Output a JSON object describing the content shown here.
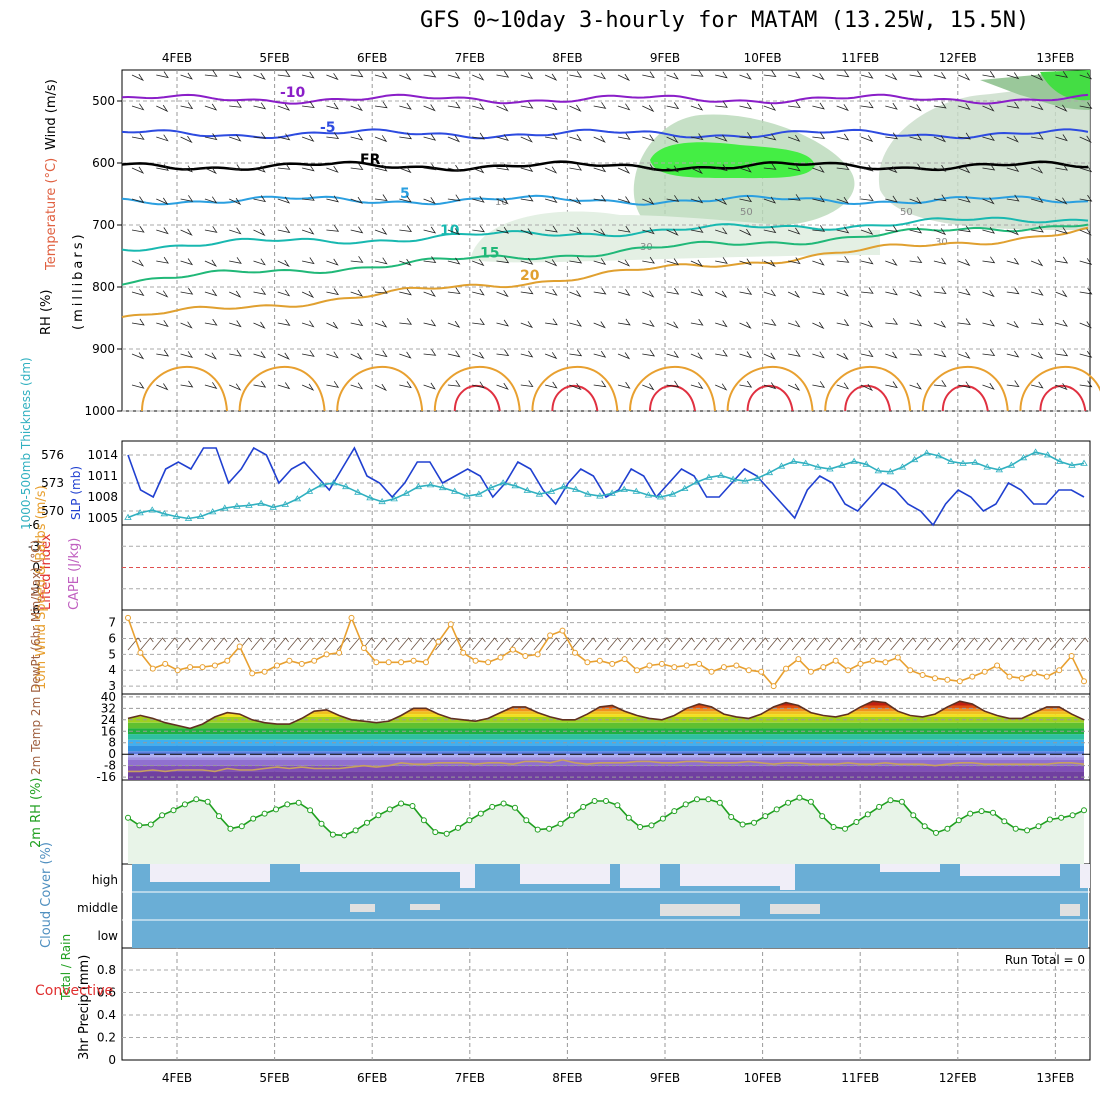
{
  "title": "GFS 0~10day 3-hourly for MATAM (13.25W, 15.5N)",
  "dates": [
    "4FEB",
    "5FEB",
    "6FEB",
    "7FEB",
    "8FEB",
    "9FEB",
    "10FEB",
    "11FEB",
    "12FEB",
    "13FEB"
  ],
  "run_total": "Run Total = 0",
  "colors": {
    "rh": "#22c822",
    "temp_red": "#e03030",
    "wind_blue": "#2040d0",
    "thick": "#30b0c0",
    "speed": "#e8a030",
    "rh2m": "#20a020",
    "cloud": "#6aaed6"
  },
  "chart_data": [
    {
      "type": "contour",
      "panel": "upper-air",
      "ylabel": "(millibars)",
      "side_labels": [
        "Wind (m/s)",
        "Temperature (°C)",
        "RH (%)"
      ],
      "yticks": [
        "500",
        "600",
        "700",
        "800",
        "900",
        "1000"
      ],
      "ylim": [
        1000,
        450
      ],
      "isotherms": [
        {
          "label": "-10",
          "color": "#8a1ec8",
          "level_mb": 497
        },
        {
          "label": "-5",
          "color": "#2d4be0",
          "level_mb": 553
        },
        {
          "label": "FR",
          "color": "#000000",
          "level_mb": 605
        },
        {
          "label": "5",
          "color": "#2a9fe0",
          "level_mb": 660
        },
        {
          "label": "10",
          "color": "#18b8b0",
          "level_mb": 735
        },
        {
          "label": "15",
          "color": "#20b878",
          "level_mb": 790
        },
        {
          "label": "20",
          "color": "#e0a030",
          "level_mb": 850
        }
      ],
      "rh_labels": [
        "10",
        "30",
        "50"
      ]
    },
    {
      "type": "line",
      "panel": "thickness-slp",
      "ylabel_left": "1000-500mb Thickness (dm)",
      "ylabel_right": "SLP (mb)",
      "yticks_left": [
        "576",
        "573",
        "570"
      ],
      "yticks_right": [
        "1014",
        "1011",
        "1008",
        "1005"
      ],
      "series": [
        {
          "name": "SLP (mb)",
          "values": [
            1014,
            1009,
            1008,
            1012,
            1013,
            1012,
            1015,
            1015,
            1010,
            1012,
            1015,
            1014,
            1010,
            1012,
            1013,
            1011,
            1009,
            1012,
            1015,
            1011,
            1010,
            1008,
            1010,
            1013,
            1013,
            1010,
            1011,
            1012,
            1011,
            1008,
            1010,
            1013,
            1012,
            1009,
            1007,
            1010,
            1012,
            1011,
            1008,
            1009,
            1012,
            1011,
            1008,
            1010,
            1012,
            1011,
            1008,
            1008,
            1010,
            1012,
            1011,
            1009,
            1007,
            1005,
            1009,
            1011,
            1010,
            1007,
            1006,
            1008,
            1010,
            1009,
            1007,
            1006,
            1004,
            1007,
            1009,
            1008,
            1006,
            1007,
            1010,
            1009,
            1007,
            1007,
            1009,
            1009,
            1008
          ]
        },
        {
          "name": "1000-500mb Thickness (dm)",
          "values": [
            569.3,
            569.8,
            570.1,
            569.7,
            569.4,
            569.2,
            569.4,
            569.9,
            570.3,
            570.5,
            570.6,
            570.8,
            570.4,
            570.7,
            571.3,
            572.1,
            572.8,
            573.0,
            572.6,
            572.0,
            571.4,
            571.0,
            571.3,
            571.9,
            572.6,
            572.8,
            572.5,
            572.1,
            571.6,
            571.8,
            572.5,
            573.0,
            572.7,
            572.2,
            571.8,
            572.1,
            572.6,
            572.3,
            571.8,
            571.6,
            571.9,
            572.3,
            572.1,
            571.7,
            571.5,
            571.8,
            572.4,
            573.1,
            573.6,
            573.8,
            573.4,
            573.2,
            573.5,
            574.1,
            574.8,
            575.3,
            575.1,
            574.7,
            574.5,
            574.9,
            575.3,
            575.0,
            574.3,
            574.2,
            574.7,
            575.5,
            576.2,
            575.9,
            575.3,
            575.1,
            575.2,
            574.7,
            574.4,
            574.9,
            575.7,
            576.3,
            576.0,
            575.3,
            574.9,
            575.1
          ]
        }
      ]
    },
    {
      "type": "line",
      "panel": "stability",
      "ylabel_left": "Lifted Index",
      "ylabel_right": "CAPE (J/kg)",
      "yticks": [
        "-6",
        "-3",
        "0",
        "3",
        "6"
      ],
      "values_cape": [
        0
      ]
    },
    {
      "type": "line",
      "panel": "10m-wind",
      "ylabel": "10m Wind Speed & Barbs (m/s)",
      "yticks": [
        "7",
        "6",
        "5",
        "4",
        "3"
      ],
      "series": [
        {
          "name": "10m Wind Speed",
          "values": [
            7.3,
            5.1,
            4.1,
            4.4,
            4.0,
            4.2,
            4.2,
            4.3,
            4.6,
            5.5,
            3.8,
            3.9,
            4.3,
            4.6,
            4.4,
            4.6,
            5.0,
            5.1,
            7.3,
            5.4,
            4.5,
            4.5,
            4.5,
            4.6,
            4.5,
            5.8,
            6.9,
            5.1,
            4.6,
            4.5,
            4.8,
            5.3,
            4.9,
            5.0,
            6.2,
            6.5,
            5.1,
            4.5,
            4.6,
            4.4,
            4.7,
            4.0,
            4.3,
            4.4,
            4.2,
            4.3,
            4.4,
            3.9,
            4.2,
            4.3,
            4.0,
            3.9,
            3.0,
            4.1,
            4.7,
            3.9,
            4.2,
            4.6,
            4.0,
            4.4,
            4.6,
            4.5,
            4.8,
            4.0,
            3.7,
            3.5,
            3.4,
            3.3,
            3.6,
            3.9,
            4.3,
            3.6,
            3.5,
            3.8,
            3.6,
            4.0,
            4.9,
            3.3
          ]
        }
      ]
    },
    {
      "type": "area",
      "panel": "2m-temp",
      "ylabel": "2m Temp 2m DewPt (6hr Min/Max) (°C)",
      "yticks": [
        "40",
        "32",
        "24",
        "16",
        "8",
        "0",
        "-8",
        "-16"
      ],
      "series": [
        {
          "name": "2m Temp",
          "values": [
            25,
            27,
            25,
            22,
            20,
            18,
            21,
            26,
            29,
            28,
            24,
            22,
            21,
            21,
            25,
            30,
            31,
            27,
            24,
            23,
            22,
            23,
            27,
            32,
            32,
            28,
            25,
            24,
            23,
            25,
            29,
            33,
            33,
            29,
            26,
            24,
            24,
            28,
            33,
            34,
            30,
            27,
            25,
            24,
            27,
            32,
            35,
            33,
            28,
            26,
            25,
            28,
            33,
            36,
            34,
            29,
            27,
            26,
            28,
            33,
            37,
            36,
            30,
            27,
            26,
            28,
            33,
            37,
            35,
            30,
            27,
            25,
            25,
            29,
            33,
            33,
            28,
            24
          ]
        },
        {
          "name": "2m DewPt",
          "values": [
            -12,
            -12,
            -11,
            -12,
            -11,
            -11,
            -11,
            -12,
            -10,
            -11,
            -11,
            -10,
            -9,
            -10,
            -9,
            -10,
            -10,
            -10,
            -9,
            -8,
            -9,
            -8,
            -6,
            -7,
            -7,
            -6,
            -6,
            -6,
            -7,
            -6,
            -6,
            -7,
            -5,
            -5,
            -6,
            -4,
            -6,
            -7,
            -6,
            -6,
            -6,
            -5,
            -5,
            -6,
            -6,
            -5,
            -5,
            -6,
            -6,
            -6,
            -5,
            -6,
            -7,
            -6,
            -6,
            -7,
            -7,
            -7,
            -6,
            -7,
            -7,
            -6,
            -7,
            -7,
            -7,
            -8,
            -7,
            -6,
            -6,
            -7,
            -7,
            -7,
            -7,
            -7,
            -7,
            -6,
            -6,
            -7
          ]
        }
      ]
    },
    {
      "type": "line",
      "panel": "2m-rh",
      "ylabel": "2m RH (%)",
      "series": [
        {
          "name": "2m RH",
          "values": [
            0.55,
            0.46,
            0.47,
            0.58,
            0.64,
            0.71,
            0.77,
            0.74,
            0.57,
            0.42,
            0.45,
            0.54,
            0.6,
            0.65,
            0.71,
            0.73,
            0.64,
            0.48,
            0.35,
            0.34,
            0.4,
            0.49,
            0.58,
            0.65,
            0.72,
            0.69,
            0.52,
            0.38,
            0.36,
            0.43,
            0.52,
            0.6,
            0.68,
            0.72,
            0.67,
            0.52,
            0.41,
            0.42,
            0.48,
            0.58,
            0.68,
            0.75,
            0.75,
            0.7,
            0.55,
            0.44,
            0.46,
            0.54,
            0.63,
            0.71,
            0.77,
            0.77,
            0.73,
            0.56,
            0.47,
            0.49,
            0.57,
            0.65,
            0.73,
            0.79,
            0.74,
            0.57,
            0.44,
            0.42,
            0.5,
            0.59,
            0.68,
            0.76,
            0.74,
            0.58,
            0.45,
            0.37,
            0.42,
            0.52,
            0.6,
            0.63,
            0.61,
            0.51,
            0.42,
            0.4,
            0.45,
            0.53,
            0.55,
            0.58,
            0.64
          ]
        }
      ]
    },
    {
      "type": "bar",
      "panel": "cloud-cover",
      "ylabel": "Cloud Cover (%)",
      "levels": [
        "high",
        "middle",
        "low"
      ]
    },
    {
      "type": "bar",
      "panel": "precip",
      "ylabel": "3hr Precip (mm)",
      "side_labels": [
        "Total / Rain",
        "Convective"
      ],
      "yticks": [
        "0.8",
        "0.6",
        "0.4",
        "0.2",
        "0"
      ],
      "values": [
        0
      ]
    }
  ]
}
